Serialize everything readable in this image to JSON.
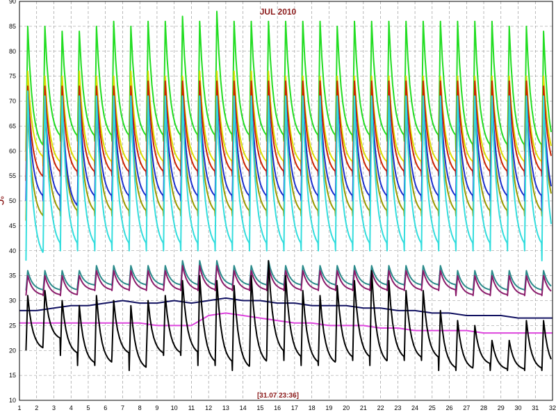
{
  "chart_data": {
    "type": "line",
    "title": "JUL 2010",
    "ylabel": "°C",
    "annotation": "[31.07 23:36]",
    "xlim": [
      1,
      32
    ],
    "ylim": [
      10,
      90
    ],
    "x_ticks": [
      1,
      2,
      3,
      4,
      5,
      6,
      7,
      8,
      9,
      10,
      11,
      12,
      13,
      14,
      15,
      16,
      17,
      18,
      19,
      20,
      21,
      22,
      23,
      24,
      25,
      26,
      27,
      28,
      29,
      30,
      31,
      32
    ],
    "y_ticks": [
      10,
      15,
      20,
      25,
      30,
      35,
      40,
      45,
      50,
      55,
      60,
      65,
      70,
      75,
      80,
      85,
      90
    ],
    "grid": true,
    "legend": "none",
    "series": [
      {
        "color": "#22dd22",
        "description": "daily sawtooth: peak then decay",
        "daily_peaks": [
          85,
          85,
          84,
          84,
          85,
          86,
          85,
          86,
          86,
          87,
          86,
          88,
          86,
          86,
          86,
          86,
          86,
          86,
          85,
          86,
          86,
          86,
          86,
          86,
          86,
          86,
          86,
          86,
          85,
          85,
          84,
          83
        ],
        "daily_mins": [
          60,
          62,
          62,
          62,
          62,
          62,
          62,
          62,
          62,
          62,
          62,
          62,
          62,
          62,
          62,
          62,
          62,
          62,
          62,
          62,
          62,
          62,
          62,
          62,
          62,
          60,
          60,
          60,
          60,
          60,
          58,
          58
        ]
      },
      {
        "color": "#dddd00",
        "daily_peaks": [
          76,
          75,
          75,
          76,
          75,
          75,
          76,
          76,
          75,
          75,
          76,
          76,
          76,
          76,
          76,
          75,
          75,
          75,
          75,
          75,
          75,
          75,
          75,
          75,
          75,
          75,
          75,
          75,
          75,
          75,
          75,
          74
        ],
        "daily_mins": [
          58,
          57,
          57,
          57,
          57,
          57,
          57,
          57,
          57,
          57,
          57,
          57,
          57,
          57,
          57,
          57,
          57,
          57,
          57,
          57,
          57,
          57,
          57,
          57,
          57,
          57,
          57,
          57,
          57,
          57,
          57,
          57
        ]
      },
      {
        "color": "#cc2200",
        "daily_peaks": [
          73,
          73,
          73,
          73,
          73,
          73,
          73,
          74,
          74,
          74,
          74,
          74,
          74,
          74,
          74,
          74,
          74,
          74,
          74,
          74,
          74,
          74,
          74,
          74,
          74,
          74,
          74,
          74,
          74,
          74,
          73,
          73
        ],
        "daily_mins": [
          54,
          55,
          55,
          55,
          55,
          55,
          55,
          55,
          55,
          55,
          55,
          55,
          55,
          55,
          55,
          55,
          55,
          55,
          55,
          55,
          55,
          55,
          55,
          55,
          55,
          55,
          55,
          55,
          55,
          55,
          55,
          54
        ]
      },
      {
        "color": "#999900",
        "daily_peaks": [
          68,
          68,
          68,
          68,
          68,
          68,
          68,
          68,
          68,
          68,
          68,
          68,
          68,
          68,
          68,
          68,
          68,
          68,
          68,
          68,
          68,
          68,
          68,
          68,
          68,
          68,
          68,
          68,
          68,
          68,
          67,
          67
        ],
        "daily_mins": [
          46,
          47,
          47,
          47,
          47,
          47,
          47,
          47,
          47,
          47,
          47,
          47,
          47,
          47,
          47,
          47,
          47,
          47,
          47,
          47,
          47,
          47,
          47,
          47,
          47,
          47,
          47,
          47,
          47,
          47,
          47,
          46
        ]
      },
      {
        "color": "#1a2fcc",
        "daily_peaks": [
          71,
          70,
          70,
          71,
          71,
          71,
          71,
          71,
          71,
          71,
          71,
          71,
          71,
          71,
          71,
          71,
          71,
          71,
          71,
          71,
          71,
          71,
          71,
          71,
          71,
          71,
          71,
          71,
          71,
          71,
          70,
          70
        ],
        "daily_mins": [
          50,
          50,
          48,
          50,
          50,
          50,
          50,
          50,
          50,
          50,
          50,
          50,
          50,
          50,
          50,
          50,
          50,
          50,
          50,
          50,
          50,
          50,
          50,
          50,
          50,
          50,
          50,
          50,
          50,
          50,
          48,
          48
        ]
      },
      {
        "color": "#33dddd",
        "daily_peaks": [
          72,
          71,
          71,
          71,
          71,
          71,
          71,
          71,
          71,
          71,
          71,
          71,
          71,
          71,
          71,
          71,
          71,
          71,
          71,
          71,
          71,
          71,
          71,
          71,
          71,
          71,
          71,
          71,
          71,
          71,
          71,
          70
        ],
        "daily_mins": [
          38,
          40,
          40,
          40,
          40,
          40,
          40,
          40,
          40,
          40,
          40,
          40,
          40,
          40,
          40,
          40,
          40,
          40,
          40,
          40,
          40,
          40,
          40,
          40,
          40,
          40,
          40,
          40,
          40,
          40,
          38,
          38
        ]
      },
      {
        "color": "#2a8a8a",
        "daily_peaks": [
          36,
          36,
          36,
          36,
          37,
          37,
          37,
          37,
          37,
          38,
          38,
          38,
          37,
          37,
          38,
          37,
          37,
          37,
          37,
          37,
          37,
          37,
          37,
          37,
          37,
          36,
          36,
          36,
          36,
          36,
          36,
          35
        ],
        "daily_mins": [
          32,
          32,
          32,
          33,
          33,
          33,
          33,
          33,
          33,
          33,
          33,
          33,
          33,
          33,
          33,
          33,
          33,
          33,
          33,
          33,
          33,
          33,
          33,
          33,
          33,
          32,
          32,
          32,
          32,
          32,
          32,
          32
        ]
      },
      {
        "color": "#8a1a6a",
        "daily_peaks": [
          35,
          35,
          35,
          35,
          36,
          36,
          36,
          36,
          36,
          37,
          37,
          37,
          36,
          36,
          37,
          36,
          36,
          36,
          36,
          36,
          36,
          36,
          36,
          36,
          36,
          35,
          35,
          35,
          35,
          35,
          35,
          34
        ],
        "daily_mins": [
          31,
          31,
          31,
          32,
          32,
          32,
          32,
          32,
          32,
          32,
          32,
          32,
          32,
          32,
          32,
          32,
          32,
          32,
          32,
          32,
          32,
          32,
          32,
          32,
          32,
          31,
          31,
          31,
          31,
          31,
          31,
          31
        ]
      },
      {
        "color": "#101060",
        "values": [
          28,
          28,
          28.5,
          29,
          29,
          29.5,
          30,
          29.5,
          29.5,
          30,
          29.5,
          30,
          30.5,
          30,
          30,
          29.5,
          29.5,
          29,
          29,
          29,
          28.5,
          28.5,
          28,
          28,
          27.5,
          27.5,
          27,
          27,
          27,
          26.5,
          26.5,
          26.5
        ]
      },
      {
        "color": "#dd44dd",
        "values": [
          25.5,
          25.5,
          25.5,
          25.5,
          25.5,
          25.5,
          25.5,
          25.5,
          25,
          25,
          25,
          27,
          27.5,
          27,
          26.5,
          26,
          25.5,
          25.5,
          25,
          25,
          25,
          24.5,
          24.5,
          24,
          24,
          24,
          24,
          23.5,
          23.5,
          23.5,
          23.5,
          23.5
        ]
      },
      {
        "color": "#000000",
        "daily_peaks": [
          31,
          32,
          30,
          29,
          31,
          30,
          29,
          30,
          31,
          34,
          35,
          34,
          33,
          35,
          38,
          35,
          32,
          31,
          33,
          34,
          36,
          34,
          32,
          32,
          28,
          26,
          25,
          22,
          22,
          26,
          26,
          25
        ],
        "daily_mins": [
          20,
          22,
          19,
          17,
          17,
          19,
          16,
          19,
          19,
          19,
          17,
          17,
          16,
          17,
          19,
          18,
          17,
          17,
          18,
          18,
          17,
          18,
          18,
          18,
          16,
          16,
          17,
          16,
          16,
          16,
          16,
          15
        ]
      }
    ]
  }
}
